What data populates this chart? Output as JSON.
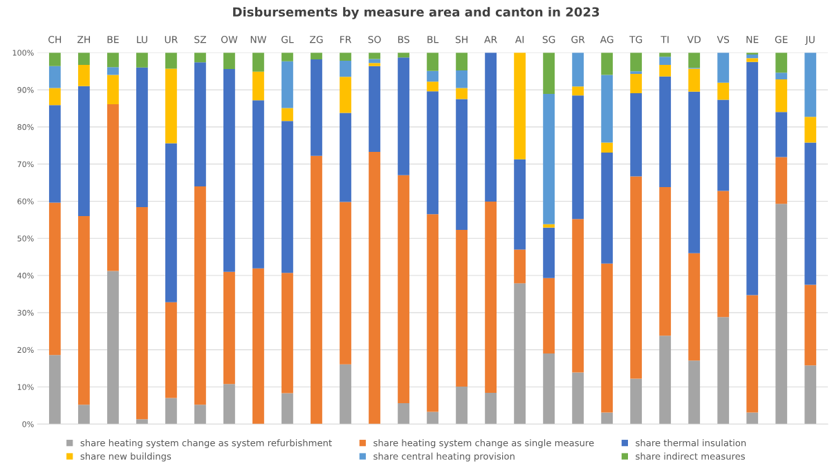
{
  "chart_data": {
    "type": "bar",
    "stacked": true,
    "title": "Disbursements by measure area and canton in 2023",
    "categories": [
      "CH",
      "ZH",
      "BE",
      "LU",
      "UR",
      "SZ",
      "OW",
      "NW",
      "GL",
      "ZG",
      "FR",
      "SO",
      "BS",
      "BL",
      "SH",
      "AR",
      "AI",
      "SG",
      "GR",
      "AG",
      "TG",
      "TI",
      "VD",
      "VS",
      "NE",
      "GE",
      "JU"
    ],
    "series": [
      {
        "name": "share heating system change as system refurbishment",
        "color": "#a5a5a5",
        "values": [
          18.6,
          5.2,
          41.2,
          1.3,
          7.0,
          5.2,
          10.8,
          0,
          8.3,
          0,
          16.1,
          0,
          5.6,
          3.3,
          10.1,
          8.4,
          37.9,
          19.0,
          13.9,
          3.1,
          12.2,
          23.8,
          17.1,
          28.8,
          3.1,
          59.3,
          15.8
        ]
      },
      {
        "name": "share heating system change as single measure",
        "color": "#ed7d31",
        "values": [
          41.0,
          50.8,
          44.9,
          57.1,
          25.8,
          58.8,
          30.2,
          41.9,
          32.4,
          72.2,
          43.7,
          73.3,
          61.4,
          53.2,
          42.2,
          51.5,
          9.1,
          20.3,
          41.3,
          40.1,
          54.5,
          40.0,
          28.9,
          34.0,
          31.6,
          12.6,
          21.7
        ]
      },
      {
        "name": "share thermal insulation",
        "color": "#4472c4",
        "values": [
          26.3,
          35.0,
          0,
          37.6,
          42.8,
          33.4,
          54.6,
          45.3,
          40.9,
          26.0,
          24.0,
          23.1,
          31.7,
          33.1,
          35.2,
          40.1,
          24.3,
          13.6,
          33.3,
          29.9,
          22.4,
          29.8,
          43.5,
          24.5,
          62.8,
          12.1,
          38.3
        ]
      },
      {
        "name": "share new buildings",
        "color": "#ffc000",
        "values": [
          4.6,
          5.7,
          7.9,
          0,
          20.1,
          0,
          0,
          7.7,
          3.5,
          0,
          9.7,
          0.8,
          0,
          2.6,
          3.0,
          0,
          28.7,
          0.9,
          2.4,
          2.7,
          5.2,
          3.1,
          6.2,
          4.6,
          1.0,
          8.8,
          6.9
        ]
      },
      {
        "name": "share central heating provision",
        "color": "#5b9bd5",
        "values": [
          5.9,
          0,
          2.1,
          0,
          0,
          0,
          0,
          0,
          12.6,
          0,
          4.3,
          1.1,
          0,
          2.9,
          4.7,
          0,
          0,
          35.1,
          9.1,
          18.2,
          0.7,
          2.2,
          0.2,
          8.1,
          1.0,
          1.8,
          17.3
        ]
      },
      {
        "name": "share indirect measures",
        "color": "#70ad47",
        "values": [
          3.6,
          3.3,
          3.9,
          4.0,
          4.3,
          2.6,
          4.4,
          5.1,
          2.3,
          1.8,
          2.2,
          1.7,
          1.3,
          4.9,
          4.8,
          0,
          0,
          11.1,
          0,
          6.0,
          5.0,
          1.1,
          4.1,
          0,
          0.5,
          5.4,
          0
        ]
      }
    ],
    "ylim": [
      0,
      100
    ],
    "yticks": [
      {
        "value": 0,
        "label": "0%"
      },
      {
        "value": 10,
        "label": "10%"
      },
      {
        "value": 20,
        "label": "20%"
      },
      {
        "value": 30,
        "label": "30%"
      },
      {
        "value": 40,
        "label": "40%"
      },
      {
        "value": 50,
        "label": "50%"
      },
      {
        "value": 60,
        "label": "60%"
      },
      {
        "value": 70,
        "label": "70%"
      },
      {
        "value": 80,
        "label": "80%"
      },
      {
        "value": 90,
        "label": "90%"
      },
      {
        "value": 100,
        "label": "100%"
      }
    ],
    "grid": "y",
    "legend": "bottom"
  }
}
